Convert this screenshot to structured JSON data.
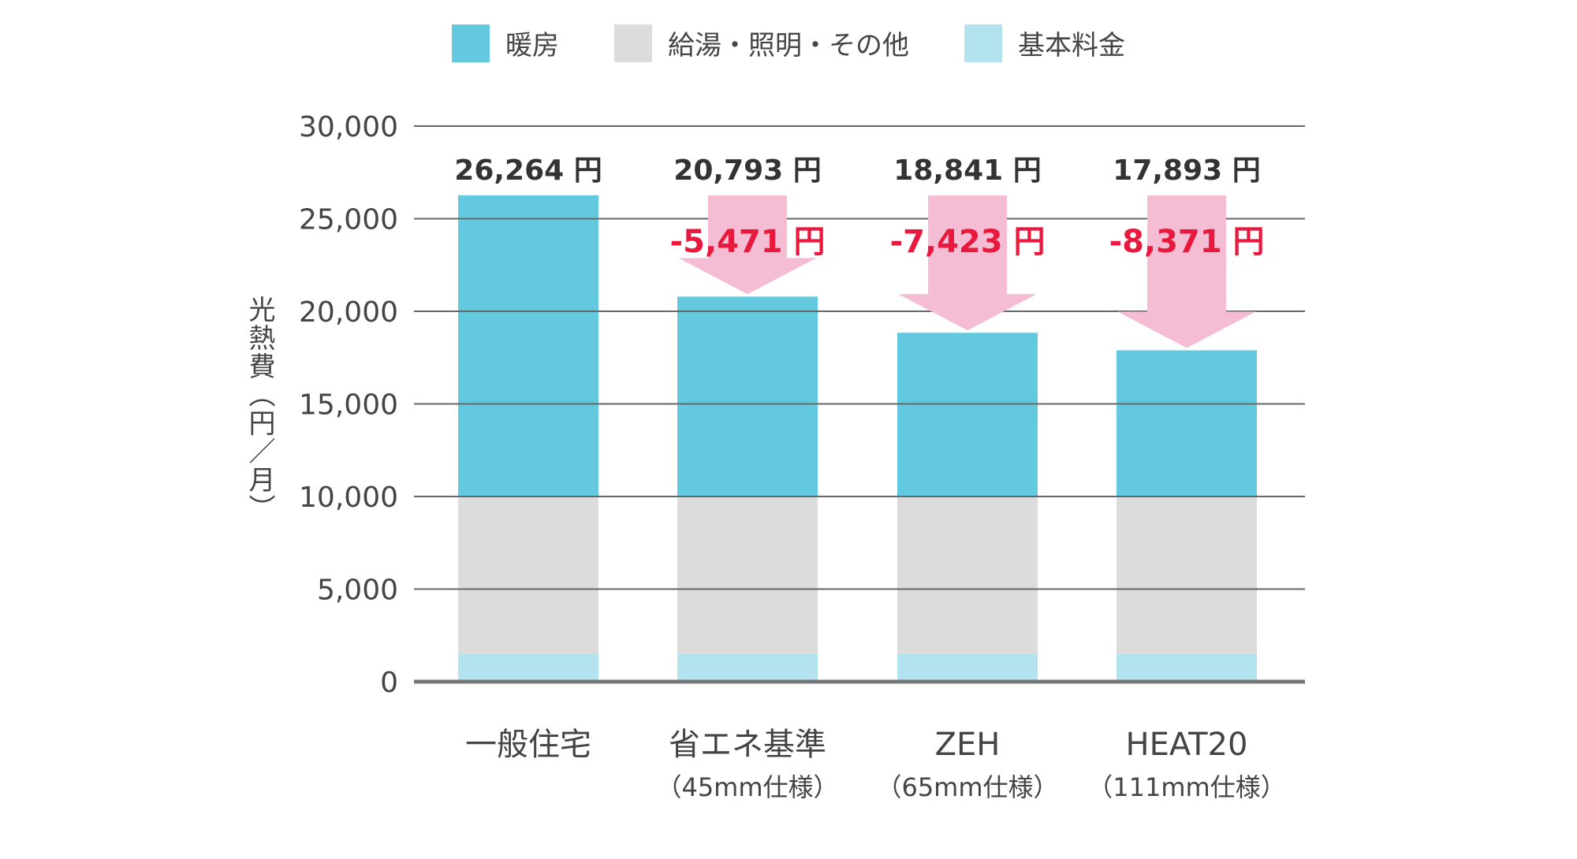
{
  "chart_data": {
    "type": "bar",
    "stacked": true,
    "categories": [
      "一般住宅",
      "省エネ基準",
      "ZEH",
      "HEAT20"
    ],
    "category_sublabels": [
      "",
      "（45mm仕様）",
      "（65mm仕様）",
      "（111mm仕様）"
    ],
    "series": [
      {
        "name": "基本料金",
        "color": "#b3e3ee",
        "values": [
          1500,
          1500,
          1500,
          1500
        ]
      },
      {
        "name": "給湯・照明・その他",
        "color": "#dcdcdc",
        "values": [
          8500,
          8500,
          8500,
          8500
        ]
      },
      {
        "name": "暖房",
        "color": "#63c9de",
        "values": [
          16264,
          10793,
          8841,
          7893
        ]
      }
    ],
    "totals": [
      "26,264 円",
      "20,793 円",
      "18,841 円",
      "17,893 円"
    ],
    "savings": [
      "",
      "-5,471 円",
      "-7,423 円",
      "-8,371 円"
    ],
    "ylabel": "光熱費（円／月）",
    "ylim": [
      0,
      30000
    ],
    "yticks": [
      0,
      5000,
      10000,
      15000,
      20000,
      25000,
      30000
    ],
    "ytick_labels": [
      "0",
      "5,000",
      "10,000",
      "15,000",
      "20,000",
      "25,000",
      "30,000"
    ],
    "legend_order": [
      "暖房",
      "給湯・照明・その他",
      "基本料金"
    ],
    "legend_position": "top-center",
    "grid": true,
    "colors": {
      "arrow": "#f5bdd3",
      "savings_text": "#e8193c",
      "total_text": "#333333",
      "axis": "#555555"
    }
  }
}
